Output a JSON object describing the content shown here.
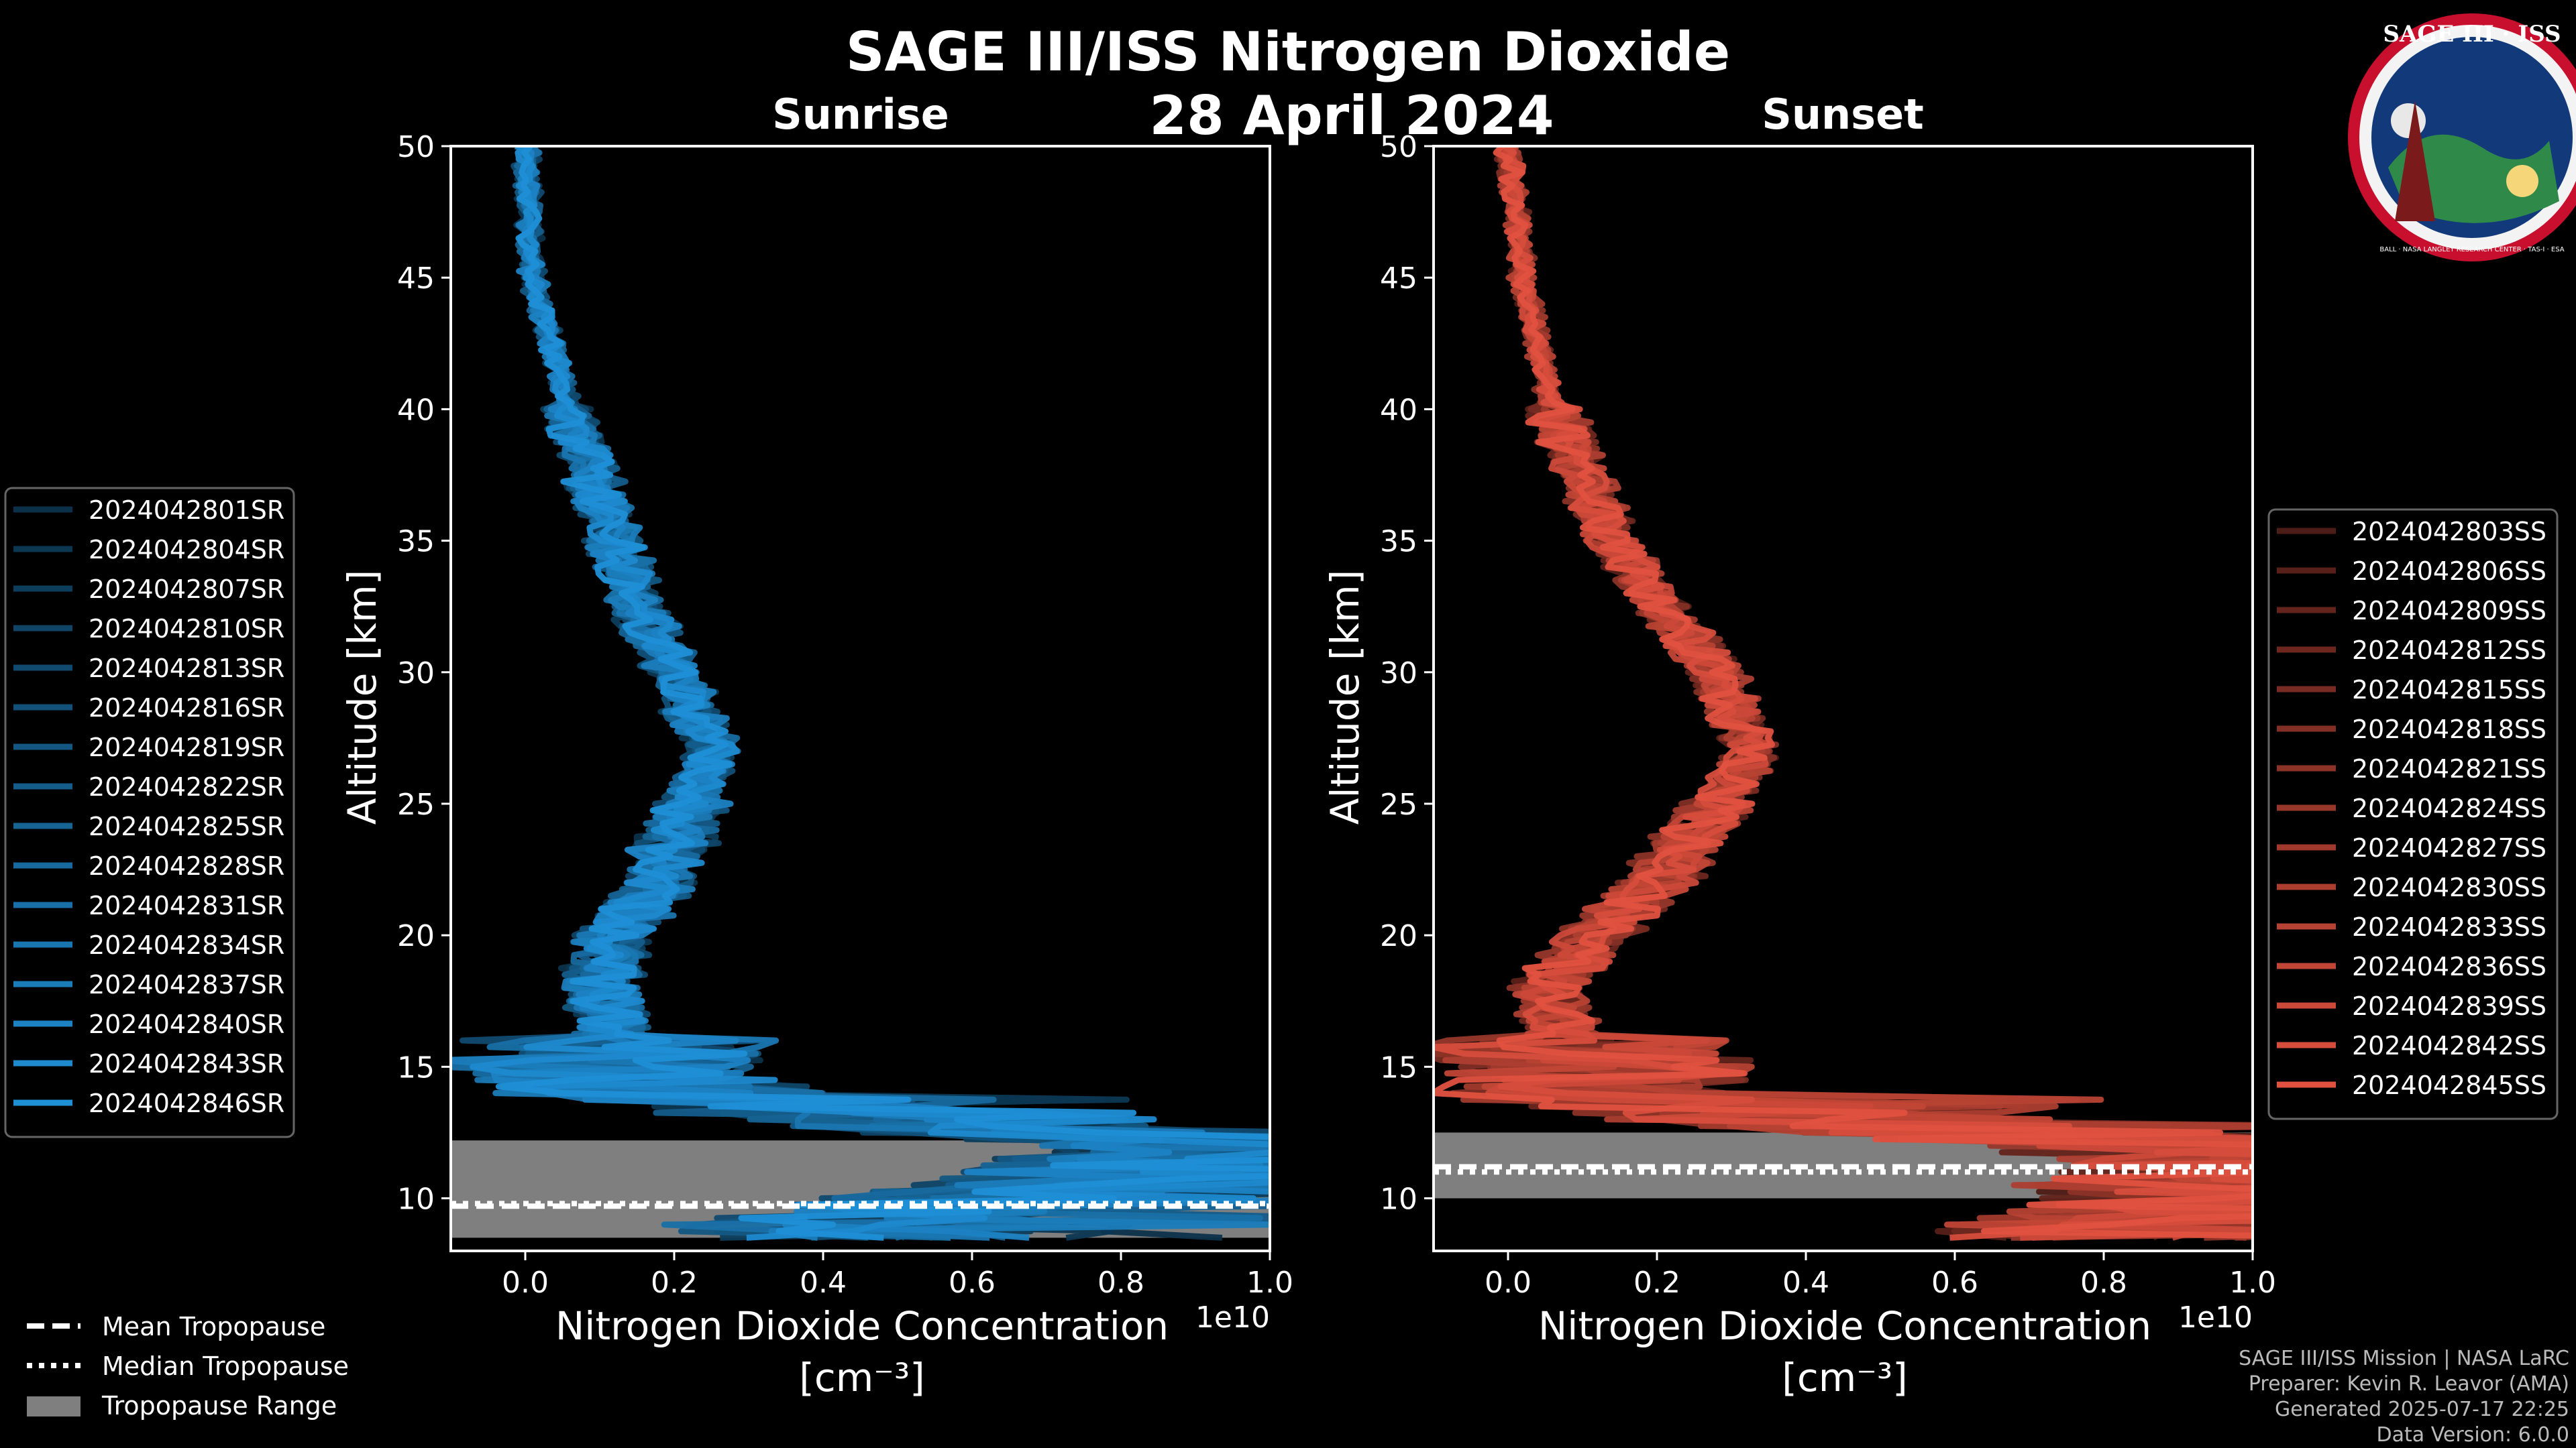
{
  "title": "SAGE III/ISS Nitrogen Dioxide",
  "date": "28 April 2024",
  "logo": {
    "text": "SAGE III · ISS",
    "ring_text": "BALL · NASA LANGLEY RESEARCH CENTER · TAS-I · ESA"
  },
  "colors": {
    "background": "#000000",
    "sunrise": "#1f8fd6",
    "sunset": "#e0513f",
    "tropopause": "#7f7f7f"
  },
  "footer": {
    "mission": "SAGE III/ISS Mission | NASA LaRC",
    "preparer": "Preparer: Kevin R. Leavor (AMA)",
    "generated": "Generated 2025-07-17 22:25",
    "version": "Data Version: 6.0.0"
  },
  "tropopause_legend": {
    "mean": "Mean Tropopause",
    "median": "Median Tropopause",
    "range": "Tropopause Range"
  },
  "chart_data": [
    {
      "type": "line",
      "title": "Sunrise",
      "xlabel": "Nitrogen Dioxide Concentration",
      "xunit": "[cm⁻³]",
      "x_offset_label": "1e10",
      "ylabel": "Altitude [km]",
      "xlim": [
        -0.1,
        1.0
      ],
      "ylim": [
        8,
        50
      ],
      "xticks": [
        "0.0",
        "0.2",
        "0.4",
        "0.6",
        "0.8",
        "1.0"
      ],
      "xtick_values": [
        0.0,
        0.2,
        0.4,
        0.6,
        0.8,
        1.0
      ],
      "yticks": [
        "10",
        "15",
        "20",
        "25",
        "30",
        "35",
        "40",
        "45",
        "50"
      ],
      "ytick_values": [
        10,
        15,
        20,
        25,
        30,
        35,
        40,
        45,
        50
      ],
      "profile_template": {
        "altitude_km": [
          50,
          45,
          40,
          35,
          32,
          30,
          27,
          25,
          22,
          20,
          18,
          16,
          15,
          14,
          13,
          12,
          11,
          10,
          9
        ],
        "concentration_1e10": [
          0.0,
          0.01,
          0.06,
          0.12,
          0.16,
          0.2,
          0.25,
          0.22,
          0.18,
          0.12,
          0.1,
          0.12,
          0.1,
          0.18,
          0.45,
          0.9,
          0.8,
          0.6,
          0.4
        ]
      },
      "tropopause": {
        "range_km": [
          8.5,
          12.2
        ],
        "mean_km": 9.7,
        "median_km": 9.8
      },
      "series": [
        {
          "name": "2024042801SR"
        },
        {
          "name": "2024042804SR"
        },
        {
          "name": "2024042807SR"
        },
        {
          "name": "2024042810SR"
        },
        {
          "name": "2024042813SR"
        },
        {
          "name": "2024042816SR"
        },
        {
          "name": "2024042819SR"
        },
        {
          "name": "2024042822SR"
        },
        {
          "name": "2024042825SR"
        },
        {
          "name": "2024042828SR"
        },
        {
          "name": "2024042831SR"
        },
        {
          "name": "2024042834SR"
        },
        {
          "name": "2024042837SR"
        },
        {
          "name": "2024042840SR"
        },
        {
          "name": "2024042843SR"
        },
        {
          "name": "2024042846SR"
        }
      ]
    },
    {
      "type": "line",
      "title": "Sunset",
      "xlabel": "Nitrogen Dioxide Concentration",
      "xunit": "[cm⁻³]",
      "x_offset_label": "1e10",
      "ylabel": "Altitude [km]",
      "xlim": [
        -0.1,
        1.0
      ],
      "ylim": [
        8,
        50
      ],
      "xticks": [
        "0.0",
        "0.2",
        "0.4",
        "0.6",
        "0.8",
        "1.0"
      ],
      "xtick_values": [
        0.0,
        0.2,
        0.4,
        0.6,
        0.8,
        1.0
      ],
      "yticks": [
        "10",
        "15",
        "20",
        "25",
        "30",
        "35",
        "40",
        "45",
        "50"
      ],
      "ytick_values": [
        10,
        15,
        20,
        25,
        30,
        35,
        40,
        45,
        50
      ],
      "profile_template": {
        "altitude_km": [
          50,
          45,
          40,
          35,
          32,
          30,
          27,
          25,
          22,
          20,
          18,
          16,
          15,
          14,
          13,
          12,
          11,
          10,
          9
        ],
        "concentration_1e10": [
          0.0,
          0.02,
          0.06,
          0.14,
          0.22,
          0.28,
          0.33,
          0.28,
          0.2,
          0.12,
          0.05,
          0.08,
          0.12,
          0.1,
          0.3,
          0.85,
          0.9,
          0.9,
          0.8
        ]
      },
      "tropopause": {
        "range_km": [
          10.0,
          12.5
        ],
        "mean_km": 11.2,
        "median_km": 11.0
      },
      "series": [
        {
          "name": "2024042803SS"
        },
        {
          "name": "2024042806SS"
        },
        {
          "name": "2024042809SS"
        },
        {
          "name": "2024042812SS"
        },
        {
          "name": "2024042815SS"
        },
        {
          "name": "2024042818SS"
        },
        {
          "name": "2024042821SS"
        },
        {
          "name": "2024042824SS"
        },
        {
          "name": "2024042827SS"
        },
        {
          "name": "2024042830SS"
        },
        {
          "name": "2024042833SS"
        },
        {
          "name": "2024042836SS"
        },
        {
          "name": "2024042839SS"
        },
        {
          "name": "2024042842SS"
        },
        {
          "name": "2024042845SS"
        }
      ]
    }
  ]
}
